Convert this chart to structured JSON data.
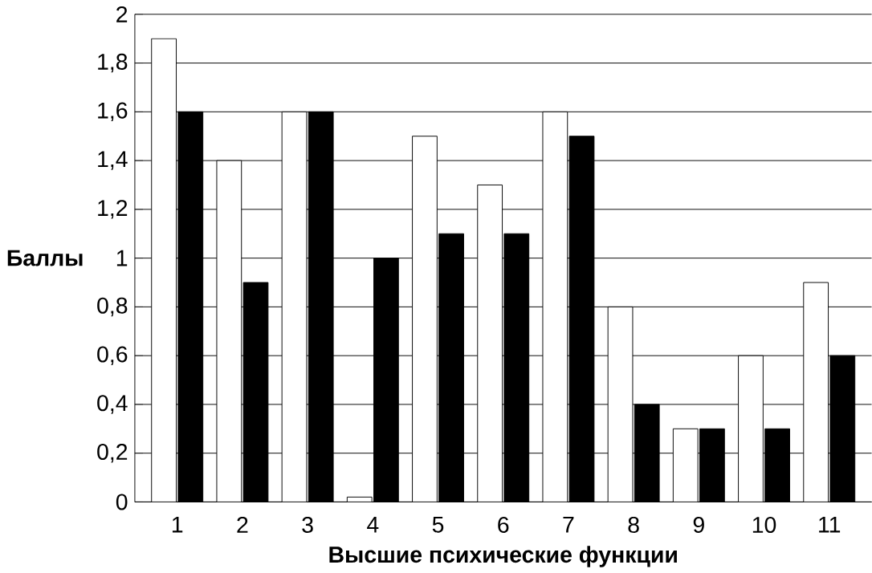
{
  "chart_data": {
    "type": "bar",
    "xlabel": "Высшие психические функции",
    "ylabel": "Баллы",
    "categories": [
      "1",
      "2",
      "3",
      "4",
      "5",
      "6",
      "7",
      "8",
      "9",
      "10",
      "11"
    ],
    "series": [
      {
        "color": "#ffffff",
        "values": [
          1.9,
          1.4,
          1.6,
          0.02,
          1.5,
          1.3,
          1.6,
          0.8,
          0.3,
          0.6,
          0.9
        ]
      },
      {
        "color": "#000000",
        "values": [
          1.6,
          0.9,
          1.6,
          1.0,
          1.1,
          1.1,
          1.5,
          0.4,
          0.3,
          0.3,
          0.6
        ]
      }
    ],
    "ylim": [
      0,
      2
    ],
    "yticks": [
      0,
      {
        "value": 0.2,
        "label": "0,2"
      },
      {
        "value": 0.4,
        "label": "0,4"
      },
      {
        "value": 0.6,
        "label": "0,6"
      },
      {
        "value": 0.8,
        "label": "0,8"
      },
      1,
      {
        "value": 1.2,
        "label": "1,2"
      },
      {
        "value": 1.4,
        "label": "1,4"
      },
      {
        "value": 1.6,
        "label": "1,6"
      },
      {
        "value": 1.8,
        "label": "1,8"
      },
      2
    ],
    "grid": "y"
  }
}
